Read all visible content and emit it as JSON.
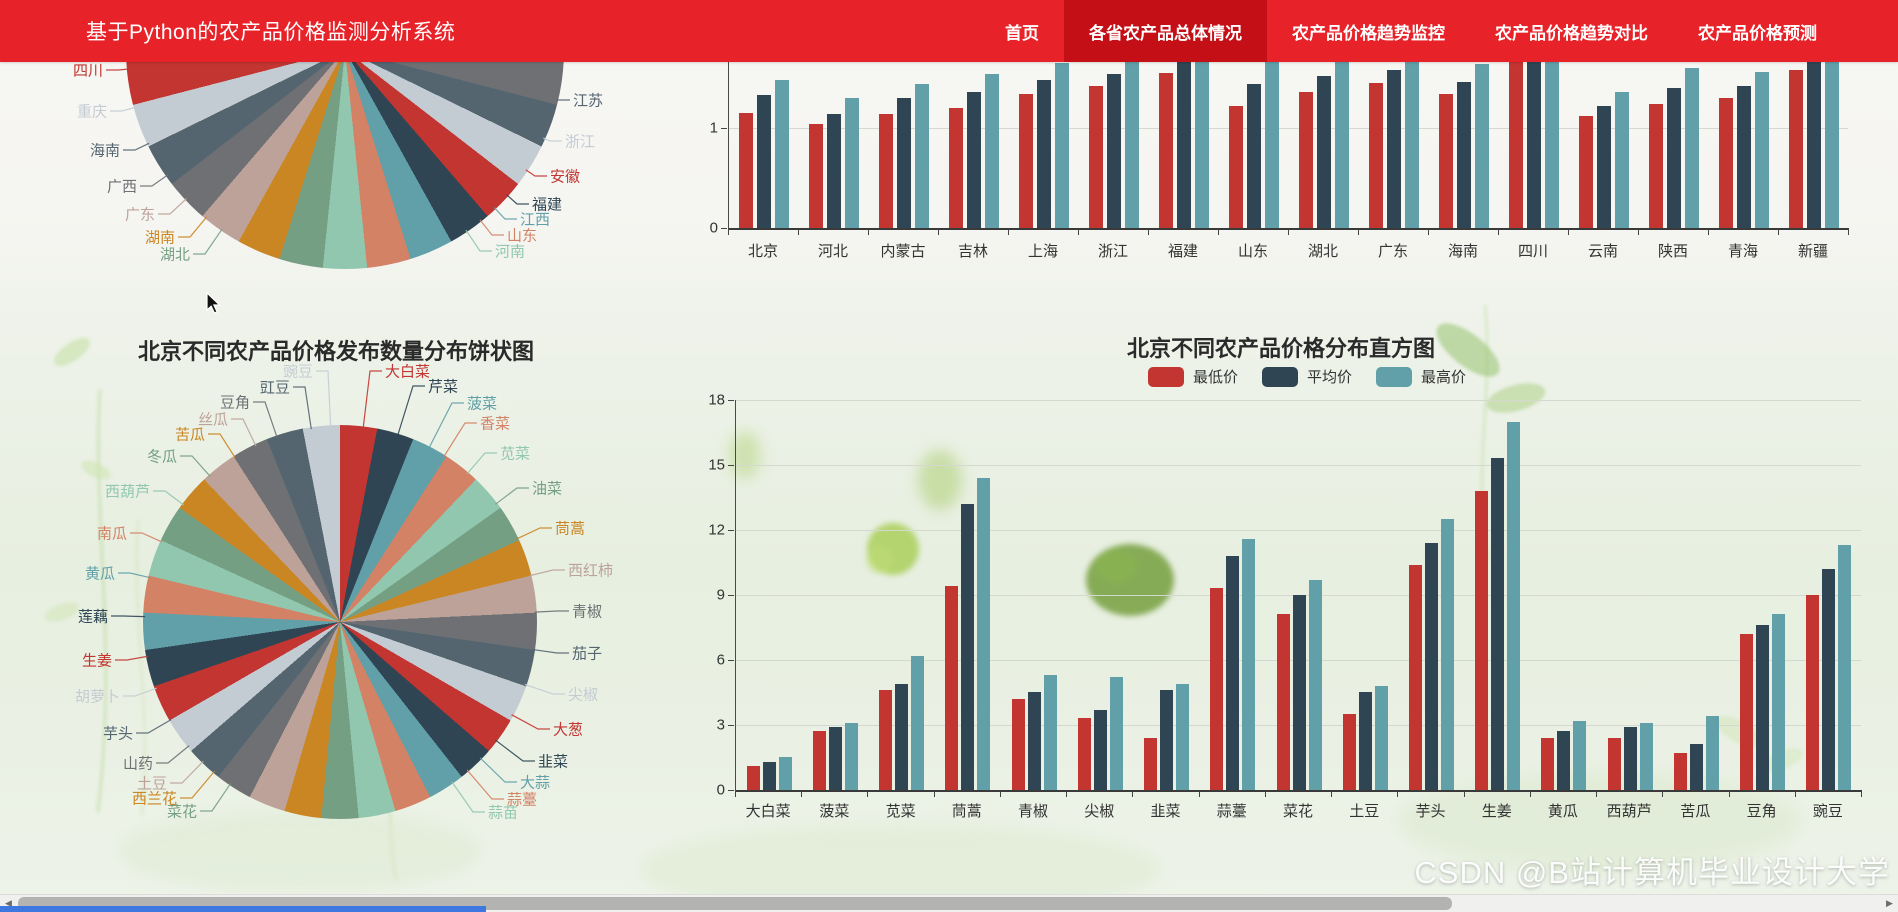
{
  "navbar": {
    "title": "基于Python的农产品价格监测分析系统",
    "items": [
      {
        "label": "首页",
        "active": false
      },
      {
        "label": "各省农产品总体情况",
        "active": true
      },
      {
        "label": "农产品价格趋势监控",
        "active": false
      },
      {
        "label": "农产品价格趋势对比",
        "active": false
      },
      {
        "label": "农产品价格预测",
        "active": false
      }
    ]
  },
  "palette": [
    "#c23531",
    "#2f4554",
    "#61a0a8",
    "#d48265",
    "#91c7ae",
    "#749f83",
    "#ca8622",
    "#bda29a",
    "#6e7074",
    "#546570",
    "#c4ccd3"
  ],
  "colors": {
    "navbar_red": "#e72329",
    "navbar_active_red": "#c40f17",
    "min_price": "#c23531",
    "avg_price": "#2f4554",
    "max_price": "#61a0a8"
  },
  "chart_data": [
    {
      "type": "pie",
      "id": "province-pie",
      "slice_count": 31,
      "labels": [
        {
          "name": "四川",
          "color": "#c23531"
        },
        {
          "name": "重庆",
          "color": "#c4ccd3"
        },
        {
          "name": "海南",
          "color": "#546570"
        },
        {
          "name": "广西",
          "color": "#6e7074"
        },
        {
          "name": "广东",
          "color": "#bda29a"
        },
        {
          "name": "湖南",
          "color": "#ca8622"
        },
        {
          "name": "湖北",
          "color": "#749f83"
        },
        {
          "name": "江苏",
          "color": "#546570"
        },
        {
          "name": "浙江",
          "color": "#c4ccd3"
        },
        {
          "name": "安徽",
          "color": "#c23531"
        },
        {
          "name": "福建",
          "color": "#2f4554"
        },
        {
          "name": "江西",
          "color": "#61a0a8"
        },
        {
          "name": "山东",
          "color": "#d48265"
        },
        {
          "name": "河南",
          "color": "#91c7ae"
        }
      ]
    },
    {
      "type": "bar",
      "id": "province-price-bars",
      "categories": [
        "北京",
        "河北",
        "内蒙古",
        "吉林",
        "上海",
        "浙江",
        "福建",
        "山东",
        "湖北",
        "广东",
        "海南",
        "四川",
        "云南",
        "陕西",
        "青海",
        "新疆"
      ],
      "yticks": [
        0,
        1
      ],
      "series": [
        {
          "color": "#c23531",
          "values": [
            1.15,
            1.04,
            1.14,
            1.2,
            1.34,
            1.42,
            1.55,
            1.22,
            1.36,
            1.45,
            1.34,
            1.7,
            1.12,
            1.24,
            1.3,
            1.58
          ]
        },
        {
          "color": "#2f4554",
          "values": [
            1.33,
            1.14,
            1.3,
            1.36,
            1.48,
            1.54,
            1.85,
            1.44,
            1.52,
            1.58,
            1.46,
            1.9,
            1.22,
            1.4,
            1.42,
            1.82
          ]
        },
        {
          "color": "#61a0a8",
          "values": [
            1.48,
            1.3,
            1.44,
            1.54,
            1.65,
            1.78,
            1.9,
            1.8,
            1.85,
            1.82,
            1.64,
            1.92,
            1.36,
            1.6,
            1.56,
            1.88
          ]
        }
      ]
    },
    {
      "type": "pie",
      "id": "beijing-count-pie",
      "title": "北京不同农产品价格发布数量分布饼状图",
      "items": [
        {
          "name": "大白菜",
          "color": "#c23531"
        },
        {
          "name": "芹菜",
          "color": "#2f4554"
        },
        {
          "name": "菠菜",
          "color": "#61a0a8"
        },
        {
          "name": "香菜",
          "color": "#d48265"
        },
        {
          "name": "苋菜",
          "color": "#91c7ae"
        },
        {
          "name": "油菜",
          "color": "#749f83"
        },
        {
          "name": "茼蒿",
          "color": "#ca8622"
        },
        {
          "name": "西红柿",
          "color": "#bda29a"
        },
        {
          "name": "青椒",
          "color": "#6e7074"
        },
        {
          "name": "茄子",
          "color": "#546570"
        },
        {
          "name": "尖椒",
          "color": "#c4ccd3"
        },
        {
          "name": "大葱",
          "color": "#c23531"
        },
        {
          "name": "韭菜",
          "color": "#2f4554"
        },
        {
          "name": "大蒜",
          "color": "#61a0a8"
        },
        {
          "name": "蒜薹",
          "color": "#d48265"
        },
        {
          "name": "蒜苗",
          "color": "#91c7ae"
        },
        {
          "name": "菜花",
          "color": "#749f83"
        },
        {
          "name": "西兰花",
          "color": "#ca8622"
        },
        {
          "name": "土豆",
          "color": "#bda29a"
        },
        {
          "name": "山药",
          "color": "#6e7074"
        },
        {
          "name": "芋头",
          "color": "#546570"
        },
        {
          "name": "胡萝卜",
          "color": "#c4ccd3"
        },
        {
          "name": "生姜",
          "color": "#c23531"
        },
        {
          "name": "莲藕",
          "color": "#2f4554"
        },
        {
          "name": "黄瓜",
          "color": "#61a0a8"
        },
        {
          "name": "南瓜",
          "color": "#d48265"
        },
        {
          "name": "西葫芦",
          "color": "#91c7ae"
        },
        {
          "name": "冬瓜",
          "color": "#749f83"
        },
        {
          "name": "苦瓜",
          "color": "#ca8622"
        },
        {
          "name": "丝瓜",
          "color": "#bda29a"
        },
        {
          "name": "豆角",
          "color": "#6e7074"
        },
        {
          "name": "豇豆",
          "color": "#546570"
        },
        {
          "name": "豌豆",
          "color": "#c4ccd3"
        }
      ]
    },
    {
      "type": "bar",
      "id": "beijing-price-histogram",
      "title": "北京不同农产品价格分布直方图",
      "legend": [
        {
          "label": "最低价",
          "color": "#c23531"
        },
        {
          "label": "平均价",
          "color": "#2f4554"
        },
        {
          "label": "最高价",
          "color": "#61a0a8"
        }
      ],
      "categories": [
        "大白菜",
        "菠菜",
        "苋菜",
        "茼蒿",
        "青椒",
        "尖椒",
        "韭菜",
        "蒜薹",
        "菜花",
        "土豆",
        "芋头",
        "生姜",
        "黄瓜",
        "西葫芦",
        "苦瓜",
        "豆角",
        "豌豆"
      ],
      "ylim": [
        0,
        18
      ],
      "yticks": [
        0,
        3,
        6,
        9,
        12,
        15,
        18
      ],
      "series": [
        {
          "name": "最低价",
          "color": "#c23531",
          "values": [
            1.1,
            2.7,
            4.6,
            9.4,
            4.2,
            3.3,
            2.4,
            9.3,
            8.1,
            3.5,
            10.4,
            13.8,
            2.4,
            2.4,
            1.7,
            7.2,
            9.0
          ]
        },
        {
          "name": "平均价",
          "color": "#2f4554",
          "values": [
            1.3,
            2.9,
            4.9,
            13.2,
            4.5,
            3.7,
            4.6,
            10.8,
            9.0,
            4.5,
            11.4,
            15.3,
            2.7,
            2.9,
            2.1,
            7.6,
            10.2
          ]
        },
        {
          "name": "最高价",
          "color": "#61a0a8",
          "values": [
            1.5,
            3.1,
            6.2,
            14.4,
            5.3,
            5.2,
            4.9,
            11.6,
            9.7,
            4.8,
            12.5,
            17.0,
            3.2,
            3.1,
            3.4,
            8.1,
            11.3
          ]
        }
      ]
    }
  ],
  "watermark": "CSDN @B站计算机毕业设计大学",
  "scrollbar": {
    "left_arrow": "◀",
    "right_arrow": "▶"
  }
}
